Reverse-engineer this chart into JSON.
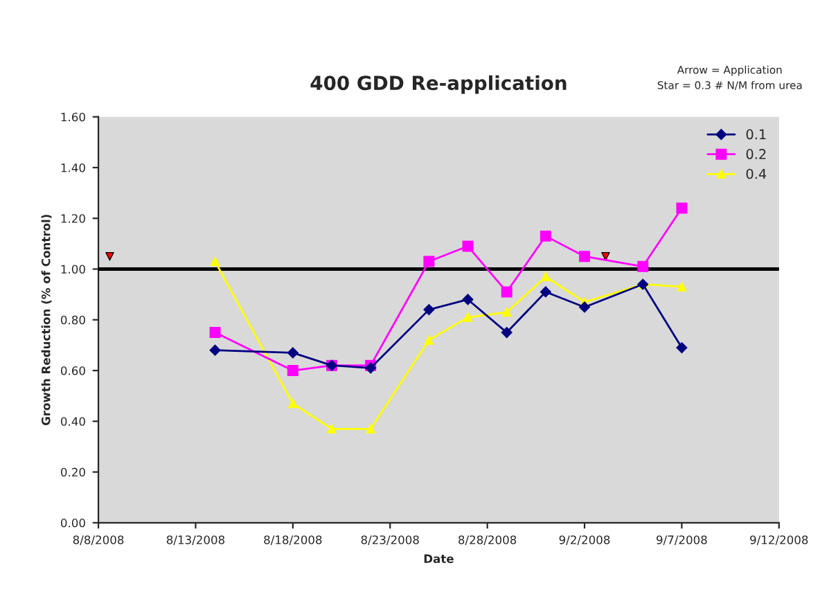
{
  "chart_data": {
    "type": "line",
    "title": "400 GDD Re-application",
    "xlabel": "Date",
    "ylabel": "Growth Reduction (% of Control)",
    "annotations": [
      "Arrow = Application",
      "Star = 0.3 # N/M from urea"
    ],
    "x": [
      "2008-08-14",
      "2008-08-18",
      "2008-08-20",
      "2008-08-22",
      "2008-08-25",
      "2008-08-27",
      "2008-08-29",
      "2008-08-31",
      "2008-09-02",
      "2008-09-05",
      "2008-09-07"
    ],
    "series": [
      {
        "name": "0.1",
        "color": "#000080",
        "marker": "diamond",
        "values": [
          0.68,
          0.67,
          0.62,
          0.61,
          0.84,
          0.88,
          0.75,
          0.91,
          0.85,
          0.94,
          0.69
        ]
      },
      {
        "name": "0.2",
        "color": "#ff00ff",
        "marker": "square",
        "values": [
          0.75,
          0.6,
          0.62,
          0.62,
          1.03,
          1.09,
          0.91,
          1.13,
          1.05,
          1.01,
          1.24
        ]
      },
      {
        "name": "0.4",
        "color": "#ffff00",
        "marker": "triangle",
        "values": [
          1.03,
          0.47,
          0.37,
          0.37,
          0.72,
          0.81,
          0.83,
          0.97,
          0.87,
          0.94,
          0.93
        ]
      },
      {
        "type": "scatter",
        "color": "#ff0000",
        "marker": "triangle",
        "x": [
          "2008-08-08T14:00",
          "2008-09-03T02:00"
        ],
        "values": [
          1.05,
          1.05
        ]
      }
    ],
    "ref_lines": [
      {
        "axis": "y",
        "value": 1.0,
        "color": "#000000",
        "line_style": "solid"
      }
    ],
    "xlim": [
      "2008-08-08",
      "2008-09-12"
    ],
    "xticks": [
      {
        "value": "2008-08-08",
        "label": "8/8/2008"
      },
      {
        "value": "2008-08-13",
        "label": "8/13/2008"
      },
      {
        "value": "2008-08-18",
        "label": "8/18/2008"
      },
      {
        "value": "2008-08-23",
        "label": "8/23/2008"
      },
      {
        "value": "2008-08-28",
        "label": "8/28/2008"
      },
      {
        "value": "2008-09-02",
        "label": "9/2/2008"
      },
      {
        "value": "2008-09-07",
        "label": "9/7/2008"
      },
      {
        "value": "2008-09-12",
        "label": "9/12/2008"
      }
    ],
    "ylim": [
      0,
      1.6
    ],
    "yticks": [
      {
        "value": 0,
        "label": "0.00"
      },
      {
        "value": 0.2,
        "label": "0.20"
      },
      {
        "value": 0.4,
        "label": "0.40"
      },
      {
        "value": 0.6,
        "label": "0.60"
      },
      {
        "value": 0.8,
        "label": "0.80"
      },
      {
        "value": 1.0,
        "label": "1.00"
      },
      {
        "value": 1.2,
        "label": "1.20"
      },
      {
        "value": 1.4,
        "label": "1.40"
      },
      {
        "value": 1.6,
        "label": "1.60"
      }
    ],
    "grid": false,
    "legend": "top right"
  }
}
